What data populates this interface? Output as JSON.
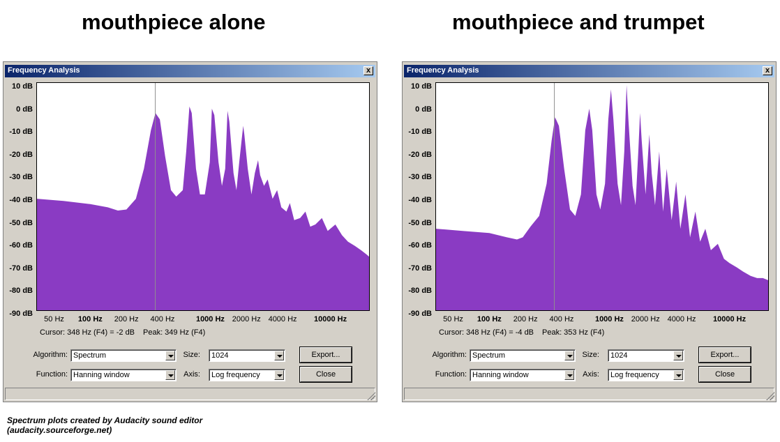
{
  "headings": [
    "mouthpiece alone",
    "mouthpiece and trumpet"
  ],
  "colors": {
    "spectrum": "#8a3bc3",
    "cursor_line": "#909090"
  },
  "windows": [
    {
      "title": "Frequency Analysis",
      "close_glyph": "x",
      "ylabels": [
        "10 dB",
        "0 dB",
        "-10 dB",
        "-20 dB",
        "-30 dB",
        "-40 dB",
        "-50 dB",
        "-60 dB",
        "-70 dB",
        "-80 dB",
        "-90 dB"
      ],
      "xlabels": [
        {
          "text": "50 Hz",
          "bold": false
        },
        {
          "text": "100 Hz",
          "bold": true
        },
        {
          "text": "200 Hz",
          "bold": false
        },
        {
          "text": "400 Hz",
          "bold": false
        },
        {
          "text": "1000 Hz",
          "bold": true
        },
        {
          "text": "2000 Hz",
          "bold": false
        },
        {
          "text": "4000 Hz",
          "bold": false
        },
        {
          "text": "10000 Hz",
          "bold": true
        }
      ],
      "cursor": "Cursor: 348 Hz (F4) = -2 dB",
      "peak": "Peak: 349 Hz (F4)",
      "algorithm_label": "Algorithm:",
      "algorithm": "Spectrum",
      "size_label": "Size:",
      "size": "1024",
      "function_label": "Function:",
      "function": "Hanning window",
      "axis_label": "Axis:",
      "axis": "Log frequency",
      "export_label": "Export...",
      "close_label": "Close",
      "chart_data": {
        "type": "area",
        "x_scale": "log",
        "xlim": [
          36,
          21000
        ],
        "ylim": [
          -94,
          12
        ],
        "cursor_hz": 348,
        "points": [
          [
            36,
            -42
          ],
          [
            60,
            -43
          ],
          [
            100,
            -44.5
          ],
          [
            140,
            -46
          ],
          [
            170,
            -47.5
          ],
          [
            200,
            -47
          ],
          [
            240,
            -42
          ],
          [
            280,
            -28
          ],
          [
            320,
            -10
          ],
          [
            349,
            -2
          ],
          [
            380,
            -5
          ],
          [
            420,
            -22
          ],
          [
            470,
            -38
          ],
          [
            520,
            -41
          ],
          [
            590,
            -38
          ],
          [
            630,
            -20
          ],
          [
            670,
            1
          ],
          [
            700,
            -2
          ],
          [
            760,
            -28
          ],
          [
            820,
            -40
          ],
          [
            900,
            -40
          ],
          [
            990,
            -25
          ],
          [
            1030,
            0
          ],
          [
            1080,
            -3
          ],
          [
            1170,
            -25
          ],
          [
            1250,
            -36
          ],
          [
            1330,
            -28
          ],
          [
            1390,
            -1
          ],
          [
            1440,
            -6
          ],
          [
            1560,
            -30
          ],
          [
            1650,
            -38
          ],
          [
            1740,
            -25
          ],
          [
            1820,
            -15
          ],
          [
            1880,
            -8
          ],
          [
            1920,
            -12
          ],
          [
            2050,
            -28
          ],
          [
            2200,
            -40
          ],
          [
            2350,
            -30
          ],
          [
            2500,
            -24
          ],
          [
            2600,
            -31
          ],
          [
            2800,
            -36
          ],
          [
            3000,
            -33
          ],
          [
            3300,
            -42
          ],
          [
            3600,
            -38
          ],
          [
            3900,
            -46
          ],
          [
            4300,
            -48
          ],
          [
            4600,
            -44
          ],
          [
            5000,
            -52
          ],
          [
            5600,
            -51
          ],
          [
            6200,
            -48
          ],
          [
            6800,
            -55
          ],
          [
            7500,
            -54
          ],
          [
            8500,
            -51
          ],
          [
            9500,
            -57
          ],
          [
            11000,
            -54
          ],
          [
            12500,
            -59
          ],
          [
            14000,
            -62
          ],
          [
            16000,
            -64
          ],
          [
            18000,
            -66
          ],
          [
            20000,
            -68
          ],
          [
            21000,
            -69
          ]
        ]
      }
    },
    {
      "title": "Frequency Analysis",
      "close_glyph": "x",
      "ylabels": [
        "10 dB",
        "0 dB",
        "-10 dB",
        "-20 dB",
        "-30 dB",
        "-40 dB",
        "-50 dB",
        "-60 dB",
        "-70 dB",
        "-80 dB",
        "-90 dB"
      ],
      "xlabels": [
        {
          "text": "50 Hz",
          "bold": false
        },
        {
          "text": "100 Hz",
          "bold": true
        },
        {
          "text": "200 Hz",
          "bold": false
        },
        {
          "text": "400 Hz",
          "bold": false
        },
        {
          "text": "1000 Hz",
          "bold": true
        },
        {
          "text": "2000 Hz",
          "bold": false
        },
        {
          "text": "4000 Hz",
          "bold": false
        },
        {
          "text": "10000 Hz",
          "bold": true
        }
      ],
      "cursor": "Cursor: 348 Hz (F4) = -4 dB",
      "peak": "Peak: 353 Hz (F4)",
      "algorithm_label": "Algorithm:",
      "algorithm": "Spectrum",
      "size_label": "Size:",
      "size": "1024",
      "function_label": "Function:",
      "function": "Hanning window",
      "axis_label": "Axis:",
      "axis": "Log frequency",
      "export_label": "Export...",
      "close_label": "Close",
      "chart_data": {
        "type": "area",
        "x_scale": "log",
        "xlim": [
          36,
          21000
        ],
        "ylim": [
          -94,
          12
        ],
        "cursor_hz": 348,
        "points": [
          [
            36,
            -56
          ],
          [
            60,
            -57
          ],
          [
            100,
            -58
          ],
          [
            140,
            -60
          ],
          [
            170,
            -61
          ],
          [
            190,
            -60
          ],
          [
            220,
            -55
          ],
          [
            260,
            -50
          ],
          [
            300,
            -35
          ],
          [
            330,
            -15
          ],
          [
            353,
            -4
          ],
          [
            380,
            -8
          ],
          [
            420,
            -28
          ],
          [
            470,
            -47
          ],
          [
            520,
            -50
          ],
          [
            580,
            -40
          ],
          [
            630,
            -10
          ],
          [
            680,
            0
          ],
          [
            720,
            -10
          ],
          [
            780,
            -40
          ],
          [
            840,
            -47
          ],
          [
            920,
            -35
          ],
          [
            980,
            -5
          ],
          [
            1030,
            9
          ],
          [
            1080,
            -5
          ],
          [
            1170,
            -35
          ],
          [
            1250,
            -45
          ],
          [
            1330,
            -20
          ],
          [
            1390,
            11
          ],
          [
            1440,
            -5
          ],
          [
            1560,
            -36
          ],
          [
            1650,
            -45
          ],
          [
            1740,
            -20
          ],
          [
            1800,
            -2
          ],
          [
            1860,
            -15
          ],
          [
            2000,
            -40
          ],
          [
            2150,
            -12
          ],
          [
            2250,
            -30
          ],
          [
            2400,
            -45
          ],
          [
            2600,
            -20
          ],
          [
            2800,
            -48
          ],
          [
            3000,
            -28
          ],
          [
            3300,
            -52
          ],
          [
            3600,
            -34
          ],
          [
            3900,
            -56
          ],
          [
            4300,
            -40
          ],
          [
            4700,
            -60
          ],
          [
            5200,
            -48
          ],
          [
            5700,
            -62
          ],
          [
            6300,
            -56
          ],
          [
            7000,
            -66
          ],
          [
            8000,
            -63
          ],
          [
            9000,
            -70
          ],
          [
            10000,
            -72
          ],
          [
            11500,
            -74
          ],
          [
            13000,
            -76
          ],
          [
            15000,
            -78
          ],
          [
            17000,
            -79
          ],
          [
            19000,
            -79
          ],
          [
            21000,
            -80
          ]
        ]
      }
    }
  ],
  "footer": [
    "Spectrum plots created by Audacity sound editor",
    "(audacity.sourceforge.net)"
  ]
}
